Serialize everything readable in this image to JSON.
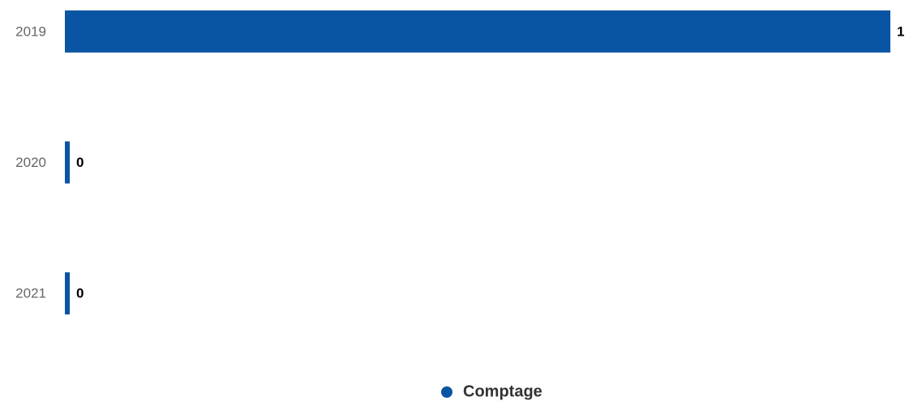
{
  "chart_data": {
    "type": "bar",
    "orientation": "horizontal",
    "categories": [
      "2019",
      "2020",
      "2021"
    ],
    "series": [
      {
        "name": "Comptage",
        "color": "#0a55a3",
        "values": [
          1,
          0,
          0
        ]
      }
    ],
    "xlim": [
      0,
      1
    ],
    "legend": "bottom",
    "data_labels": true
  }
}
